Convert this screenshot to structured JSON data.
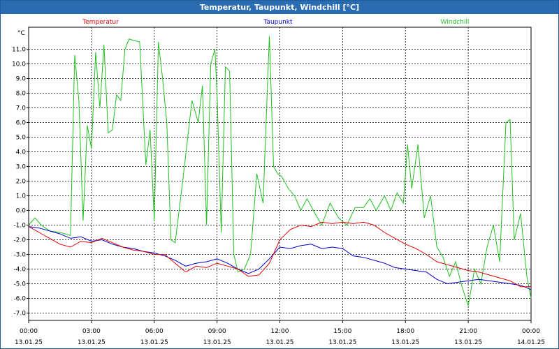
{
  "window": {
    "title": "Temperatur, Taupunkt, Windchill [°C]"
  },
  "chart_data": {
    "type": "line",
    "title": "Temperatur, Taupunkt, Windchill [°C]",
    "ylabel": "°C",
    "ylim": [
      -7.5,
      12.5
    ],
    "yticks": [
      11.0,
      10.0,
      9.0,
      8.0,
      7.0,
      6.0,
      5.0,
      4.0,
      3.0,
      2.0,
      1.0,
      0.0,
      -1.0,
      -2.0,
      -3.0,
      -4.0,
      -5.0,
      -6.0,
      -7.0
    ],
    "ytick_labels": [
      "11.0",
      "10.0",
      "9.0",
      "8.0",
      "7.0",
      "6.0",
      "5.0",
      "4.0",
      "3.0",
      "2.0",
      "1.0",
      "0.0",
      "-1.0",
      "-2.0",
      "-3.0",
      "-4.0",
      "-5.0",
      "-6.0",
      "-7.0"
    ],
    "xlim": [
      0,
      24
    ],
    "xticks": [
      0,
      3,
      6,
      9,
      12,
      15,
      18,
      21,
      24
    ],
    "xtick_time_labels": [
      "00:00",
      "03:00",
      "06:00",
      "09:00",
      "12:00",
      "15:00",
      "18:00",
      "21:00",
      "00:00"
    ],
    "xtick_date_labels": [
      "13.01.25",
      "13.01.25",
      "13.01.25",
      "13.01.25",
      "13.01.25",
      "13.01.25",
      "13.01.25",
      "13.01.25",
      "14.01.25"
    ],
    "grid": true,
    "legend_position": "top",
    "series": [
      {
        "name": "Temperatur",
        "color": "#e00000",
        "x": [
          0,
          0.5,
          1,
          1.5,
          2,
          2.5,
          3,
          3.5,
          4,
          4.5,
          5,
          5.5,
          6,
          6.5,
          7,
          7.5,
          8,
          8.5,
          9,
          9.5,
          10,
          10.5,
          11,
          11.5,
          12,
          12.5,
          13,
          13.5,
          14,
          14.5,
          15,
          15.5,
          16,
          16.5,
          17,
          17.5,
          18,
          18.5,
          19,
          19.5,
          20,
          20.5,
          21,
          21.5,
          22,
          22.5,
          23,
          23.5,
          24
        ],
        "y": [
          -1.1,
          -1.5,
          -1.9,
          -2.3,
          -2.5,
          -2.1,
          -2.2,
          -1.9,
          -2.2,
          -2.5,
          -2.7,
          -2.8,
          -3.0,
          -3.0,
          -3.6,
          -4.2,
          -3.8,
          -3.9,
          -3.6,
          -3.8,
          -4.0,
          -4.5,
          -4.4,
          -3.6,
          -2.0,
          -1.3,
          -1.0,
          -1.1,
          -0.8,
          -0.9,
          -0.8,
          -0.9,
          -0.8,
          -1.0,
          -1.5,
          -1.9,
          -2.3,
          -2.6,
          -3.0,
          -3.5,
          -3.7,
          -3.9,
          -4.1,
          -4.2,
          -4.4,
          -4.6,
          -4.8,
          -5.2,
          -5.2
        ]
      },
      {
        "name": "Taupunkt",
        "color": "#0000c8",
        "x": [
          0,
          0.5,
          1,
          1.5,
          2,
          2.5,
          3,
          3.5,
          4,
          4.5,
          5,
          5.5,
          6,
          6.5,
          7,
          7.5,
          8,
          8.5,
          9,
          9.5,
          10,
          10.5,
          11,
          11.5,
          12,
          12.5,
          13,
          13.5,
          14,
          14.5,
          15,
          15.5,
          16,
          16.5,
          17,
          17.5,
          18,
          18.5,
          19,
          19.5,
          20,
          20.5,
          21,
          21.5,
          22,
          22.5,
          23,
          23.5,
          24
        ],
        "y": [
          -1.1,
          -1.2,
          -1.4,
          -1.6,
          -1.9,
          -1.8,
          -2.1,
          -2.0,
          -2.3,
          -2.5,
          -2.6,
          -2.8,
          -2.9,
          -3.1,
          -3.4,
          -3.8,
          -3.6,
          -3.5,
          -3.3,
          -3.6,
          -4.0,
          -4.3,
          -4.0,
          -3.3,
          -2.5,
          -2.6,
          -2.4,
          -2.3,
          -2.6,
          -2.5,
          -2.6,
          -3.1,
          -3.2,
          -3.4,
          -3.6,
          -3.9,
          -4.0,
          -4.1,
          -4.2,
          -4.7,
          -5.0,
          -4.9,
          -4.8,
          -4.7,
          -4.8,
          -4.9,
          -5.0,
          -5.1,
          -5.4
        ]
      },
      {
        "name": "Windchill",
        "color": "#20c020",
        "x": [
          0,
          0.3,
          0.6,
          1,
          1.5,
          2,
          2.2,
          2.4,
          2.6,
          2.8,
          3,
          3.2,
          3.4,
          3.6,
          3.8,
          4,
          4.2,
          4.4,
          4.6,
          4.8,
          5,
          5.3,
          5.6,
          5.8,
          6,
          6.2,
          6.4,
          6.6,
          6.8,
          7,
          7.4,
          7.8,
          8.1,
          8.3,
          8.5,
          8.7,
          8.9,
          9,
          9.2,
          9.4,
          9.6,
          9.8,
          10,
          10.3,
          10.6,
          10.9,
          11.2,
          11.5,
          11.7,
          11.9,
          12.1,
          12.4,
          12.7,
          13,
          13.3,
          13.6,
          14,
          14.4,
          14.8,
          15.2,
          15.6,
          16,
          16.3,
          16.6,
          17,
          17.3,
          17.6,
          17.9,
          18.1,
          18.3,
          18.6,
          18.9,
          19.2,
          19.5,
          19.8,
          20.1,
          20.4,
          20.7,
          21,
          21.3,
          21.6,
          21.9,
          22.2,
          22.5,
          22.8,
          23,
          23.2,
          23.5,
          23.8,
          24
        ],
        "y": [
          -1.0,
          -0.5,
          -1.0,
          -1.4,
          -1.5,
          -1.7,
          10.6,
          7.5,
          -0.7,
          5.8,
          4.2,
          10.8,
          7.0,
          11.3,
          5.3,
          5.5,
          7.9,
          7.5,
          11.0,
          11.7,
          11.6,
          11.5,
          3.1,
          5.5,
          -0.7,
          11.5,
          9.0,
          6.0,
          -2.0,
          -2.2,
          2.5,
          7.5,
          6.0,
          8.5,
          -1.0,
          10.0,
          11.0,
          8.0,
          -1.5,
          9.8,
          9.5,
          -3.0,
          -4.2,
          -4.0,
          -3.0,
          2.5,
          0.5,
          11.9,
          3.0,
          2.5,
          2.3,
          1.5,
          1.0,
          0.0,
          0.8,
          0.0,
          -1.0,
          0.5,
          -0.5,
          -1.0,
          0.2,
          0.2,
          0.8,
          0.0,
          1.0,
          0.0,
          1.2,
          0.5,
          4.5,
          1.5,
          4.5,
          -0.5,
          1.0,
          -2.5,
          -3.2,
          -4.5,
          -3.5,
          -5.2,
          -6.5,
          -4.0,
          -5.0,
          -2.5,
          -1.0,
          -3.5,
          6.0,
          6.2,
          -2.0,
          -0.2,
          -4.5,
          -6.0
        ]
      }
    ]
  }
}
